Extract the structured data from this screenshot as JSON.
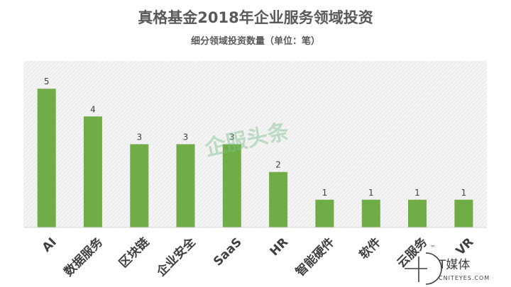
{
  "chart_data": {
    "type": "bar",
    "title": "真格基金2018年企业服务领域投资",
    "subtitle": "细分领域投资数量（单位：笔）",
    "categories": [
      "AI",
      "数据服务",
      "区块链",
      "企业安全",
      "SaaS",
      "HR",
      "智能硬件",
      "软件",
      "云服务",
      "VR"
    ],
    "values": [
      5,
      4,
      3,
      3,
      3,
      2,
      1,
      1,
      1,
      1
    ],
    "xlabel": "",
    "ylabel": "",
    "ylim": [
      0,
      6
    ],
    "grid": false,
    "legend": "none",
    "bar_color": "#70ad47",
    "plot_background": "hatched-light-gray"
  },
  "watermark": {
    "text": "企服头条"
  },
  "logo": {
    "brand": "T媒体",
    "site": "CNITEYES.COM",
    "tm": "™",
    "icon": "t-media-logo-icon"
  }
}
